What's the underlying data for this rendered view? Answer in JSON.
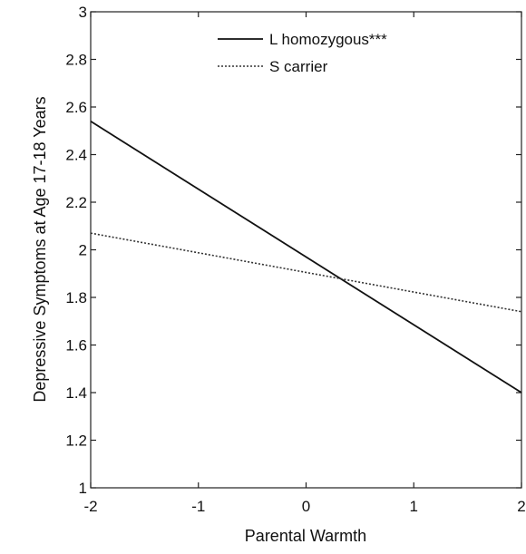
{
  "chart_data": {
    "type": "line",
    "title": "",
    "xlabel": "Parental Warmth",
    "ylabel": "Depressive Symptoms at Age 17-18 Years",
    "xlim": [
      -2,
      2
    ],
    "ylim": [
      1,
      3
    ],
    "xticks": [
      -2,
      -1,
      0,
      1,
      2
    ],
    "yticks": [
      1,
      1.2,
      1.4,
      1.6,
      1.8,
      2,
      2.2,
      2.4,
      2.6,
      2.8,
      3
    ],
    "xtick_labels": [
      "-2",
      "-1",
      "0",
      "1",
      "2"
    ],
    "ytick_labels": [
      "1",
      "1.2",
      "1.4",
      "1.6",
      "1.8",
      "2",
      "2.2",
      "2.4",
      "2.6",
      "2.8",
      "3"
    ],
    "grid": false,
    "legend_position": "top-right",
    "series": [
      {
        "name": "L homozygous***",
        "style": "solid",
        "color": "#111111",
        "x": [
          -2,
          2
        ],
        "y": [
          2.54,
          1.4
        ]
      },
      {
        "name": "S carrier",
        "style": "dotted",
        "color": "#333333",
        "x": [
          -2,
          2
        ],
        "y": [
          2.07,
          1.74
        ]
      }
    ]
  }
}
